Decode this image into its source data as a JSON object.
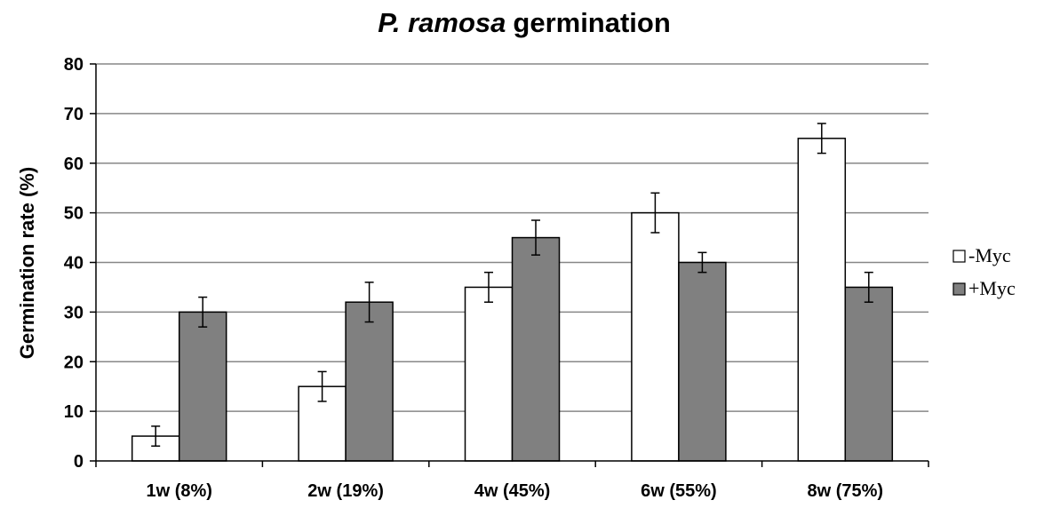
{
  "chart_data": {
    "type": "bar",
    "title": {
      "italic_part": "P. ramosa",
      "regular_part": "germination"
    },
    "xlabel": "",
    "ylabel": "Germination rate (%)",
    "ylim": [
      0,
      80
    ],
    "yticks": [
      "0",
      "10",
      "20",
      "30",
      "40",
      "50",
      "60",
      "70",
      "80"
    ],
    "grid": true,
    "legend_position": "right",
    "categories": [
      "1w (8%)",
      "2w (19%)",
      "4w (45%)",
      "6w (55%)",
      "8w (75%)"
    ],
    "series": [
      {
        "name": "-Myc",
        "color": "#ffffff",
        "values": [
          5,
          15,
          35,
          50,
          65
        ],
        "error": [
          2,
          3,
          3,
          4,
          3
        ]
      },
      {
        "name": "+Myc",
        "color": "#808080",
        "values": [
          30,
          32,
          45,
          40,
          35
        ],
        "error": [
          3,
          4,
          3.5,
          2,
          3
        ]
      }
    ]
  }
}
